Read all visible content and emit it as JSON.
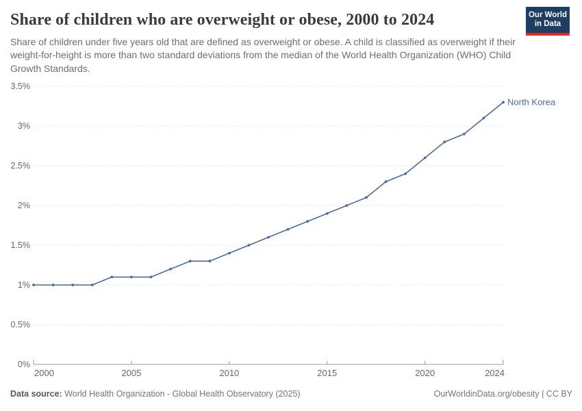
{
  "header": {
    "title": "Share of children who are overweight or obese, 2000 to 2024",
    "subtitle": "Share of children under five years old that are defined as overweight or obese. A child is classified as overweight if their weight-for-height is more than two standard deviations from the median of the World Health Organization (WHO) Child Growth Standards."
  },
  "logo": {
    "line1": "Our World",
    "line2": "in Data",
    "bg_color": "#1d3d63",
    "accent_color": "#dc2e27"
  },
  "chart_data": {
    "type": "line",
    "title": "Share of children who are overweight or obese, 2000 to 2024",
    "x": [
      2000,
      2001,
      2002,
      2003,
      2004,
      2005,
      2006,
      2007,
      2008,
      2009,
      2010,
      2011,
      2012,
      2013,
      2014,
      2015,
      2016,
      2017,
      2018,
      2019,
      2020,
      2021,
      2022,
      2023,
      2024
    ],
    "series": [
      {
        "name": "North Korea",
        "color": "#4c6a9c",
        "values": [
          1.0,
          1.0,
          1.0,
          1.0,
          1.1,
          1.1,
          1.1,
          1.2,
          1.3,
          1.3,
          1.4,
          1.5,
          1.6,
          1.7,
          1.8,
          1.9,
          2.0,
          2.1,
          2.3,
          2.4,
          2.6,
          2.8,
          2.9,
          3.1,
          3.3
        ]
      }
    ],
    "unit": "%",
    "xlabel": "",
    "ylabel": "",
    "ylim": [
      0,
      3.5
    ],
    "yticks": [
      0,
      0.5,
      1,
      1.5,
      2,
      2.5,
      3,
      3.5
    ],
    "ytick_labels": [
      "0%",
      "0.5%",
      "1%",
      "1.5%",
      "2%",
      "2.5%",
      "3%",
      "3.5%"
    ],
    "xticks": [
      2000,
      2005,
      2010,
      2015,
      2020,
      2024
    ],
    "grid": "horizontal-dashed",
    "legend_position": "end-of-line-label",
    "colors": {
      "gridline": "#e2e2e2",
      "axis": "#9a9a9a",
      "tick_text": "#666666"
    }
  },
  "footer": {
    "source_label": "Data source:",
    "source_text": " World Health Organization - Global Health Observatory (2025)",
    "rights": "OurWorldinData.org/obesity | CC BY"
  }
}
